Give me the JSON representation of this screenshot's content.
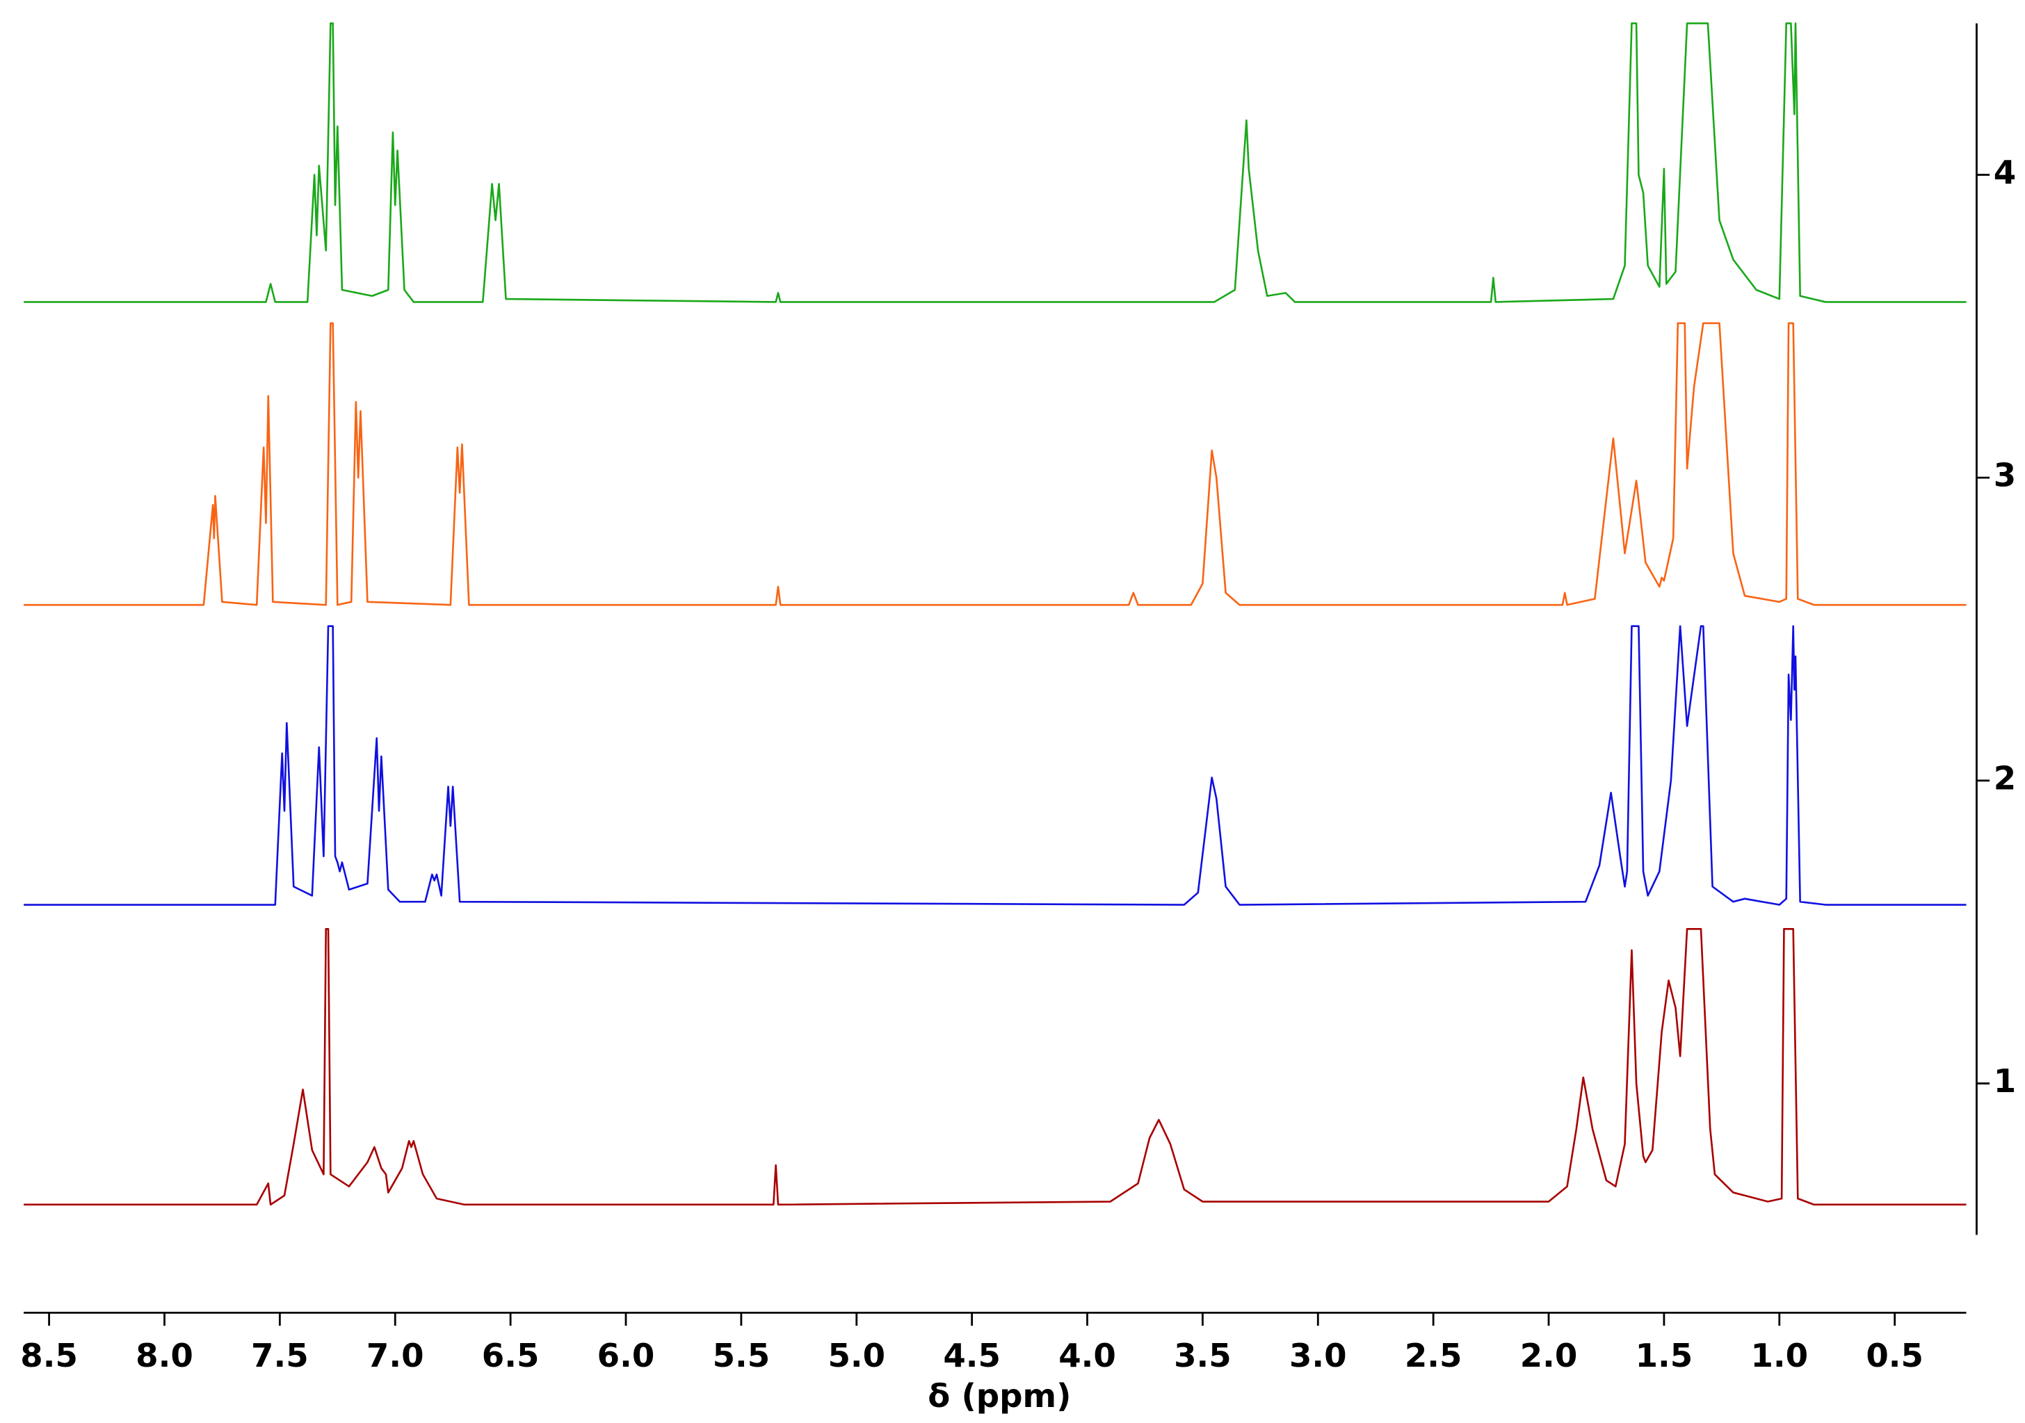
{
  "chart_data": {
    "type": "line",
    "xlabel": "δ (ppm)",
    "xlim": [
      8.61,
      0.19
    ],
    "xticks": [
      8.5,
      {
        "value": 8,
        "label": "8.0"
      },
      7.5,
      {
        "value": 7,
        "label": "7.0"
      },
      6.5,
      {
        "value": 6,
        "label": "6.0"
      },
      5.5,
      {
        "value": 5,
        "label": "5.0"
      },
      4.5,
      {
        "value": 4,
        "label": "4.0"
      },
      3.5,
      {
        "value": 3,
        "label": "3.0"
      },
      2.5,
      {
        "value": 2,
        "label": "2.0"
      },
      1.5,
      {
        "value": 1,
        "label": "1.0"
      },
      0.5
    ],
    "ylim": [
      0.5,
      4.5
    ],
    "yticks": [
      1,
      2,
      3,
      4
    ],
    "grid": false,
    "series": [
      {
        "color": "#a80000",
        "x": [
          8.61,
          7.6,
          7.55,
          7.54,
          7.48,
          7.44,
          7.4,
          7.36,
          7.31,
          7.3,
          7.29,
          7.28,
          7.2,
          7.12,
          7.09,
          7.06,
          7.04,
          7.03,
          6.97,
          6.94,
          6.93,
          6.92,
          6.88,
          6.82,
          6.7,
          5.36,
          5.35,
          5.34,
          3.9,
          3.78,
          3.73,
          3.69,
          3.64,
          3.58,
          3.5,
          2.0,
          1.92,
          1.88,
          1.85,
          1.81,
          1.75,
          1.71,
          1.67,
          1.64,
          1.62,
          1.59,
          1.58,
          1.55,
          1.51,
          1.48,
          1.45,
          1.43,
          1.4,
          1.34,
          1.3,
          1.28,
          1.2,
          1.15,
          1.05,
          0.99,
          0.98,
          0.94,
          0.92,
          0.85,
          0.19
        ],
        "values": [
          0.6,
          0.6,
          0.67,
          0.6,
          0.63,
          0.8,
          0.98,
          0.78,
          0.7,
          1.51,
          1.51,
          0.7,
          0.66,
          0.74,
          0.79,
          0.72,
          0.7,
          0.64,
          0.72,
          0.81,
          0.79,
          0.81,
          0.7,
          0.62,
          0.6,
          0.6,
          0.73,
          0.6,
          0.61,
          0.67,
          0.82,
          0.88,
          0.8,
          0.65,
          0.61,
          0.61,
          0.66,
          0.85,
          1.02,
          0.85,
          0.68,
          0.66,
          0.8,
          1.44,
          1.0,
          0.76,
          0.74,
          0.78,
          1.17,
          1.34,
          1.25,
          1.09,
          1.51,
          1.51,
          0.85,
          0.7,
          0.64,
          0.63,
          0.61,
          0.62,
          1.51,
          1.51,
          0.62,
          0.6,
          0.6
        ]
      },
      {
        "color": "#1010e0",
        "x": [
          8.61,
          7.52,
          7.49,
          7.48,
          7.47,
          7.44,
          7.36,
          7.33,
          7.31,
          7.29,
          7.27,
          7.26,
          7.25,
          7.24,
          7.23,
          7.2,
          7.12,
          7.08,
          7.07,
          7.06,
          7.03,
          6.98,
          6.87,
          6.84,
          6.83,
          6.82,
          6.8,
          6.77,
          6.76,
          6.75,
          6.72,
          3.58,
          3.52,
          3.46,
          3.44,
          3.4,
          3.34,
          1.84,
          1.78,
          1.73,
          1.69,
          1.67,
          1.66,
          1.64,
          1.61,
          1.59,
          1.57,
          1.52,
          1.47,
          1.43,
          1.4,
          1.34,
          1.33,
          1.29,
          1.2,
          1.15,
          1.0,
          0.97,
          0.96,
          0.95,
          0.94,
          0.935,
          0.93,
          0.91,
          0.8,
          0.19
        ],
        "values": [
          1.59,
          1.59,
          2.09,
          1.9,
          2.19,
          1.65,
          1.62,
          2.11,
          1.75,
          2.51,
          2.51,
          1.75,
          1.73,
          1.7,
          1.73,
          1.64,
          1.66,
          2.14,
          1.9,
          2.08,
          1.64,
          1.6,
          1.6,
          1.69,
          1.67,
          1.69,
          1.62,
          1.98,
          1.85,
          1.98,
          1.6,
          1.59,
          1.63,
          2.01,
          1.94,
          1.65,
          1.59,
          1.6,
          1.72,
          1.96,
          1.75,
          1.65,
          1.7,
          2.51,
          2.51,
          1.7,
          1.62,
          1.7,
          2.0,
          2.51,
          2.18,
          2.51,
          2.51,
          1.65,
          1.6,
          1.61,
          1.59,
          1.61,
          2.35,
          2.2,
          2.51,
          2.3,
          2.41,
          1.6,
          1.59,
          1.59
        ]
      },
      {
        "color": "#f86414",
        "x": [
          8.61,
          7.83,
          7.79,
          7.785,
          7.78,
          7.75,
          7.6,
          7.57,
          7.56,
          7.55,
          7.53,
          7.3,
          7.28,
          7.27,
          7.25,
          7.19,
          7.17,
          7.16,
          7.15,
          7.12,
          6.76,
          6.73,
          6.72,
          6.71,
          6.68,
          5.35,
          5.34,
          5.33,
          3.82,
          3.8,
          3.78,
          3.55,
          3.5,
          3.46,
          3.44,
          3.4,
          3.34,
          1.94,
          1.93,
          1.92,
          1.8,
          1.72,
          1.67,
          1.62,
          1.58,
          1.52,
          1.51,
          1.5,
          1.46,
          1.44,
          1.41,
          1.4,
          1.37,
          1.33,
          1.26,
          1.2,
          1.15,
          1.0,
          0.97,
          0.96,
          0.94,
          0.92,
          0.85,
          0.19
        ],
        "values": [
          2.58,
          2.58,
          2.91,
          2.8,
          2.94,
          2.59,
          2.58,
          3.1,
          2.85,
          3.27,
          2.59,
          2.58,
          3.51,
          3.51,
          2.58,
          2.59,
          3.25,
          3.0,
          3.22,
          2.59,
          2.58,
          3.1,
          2.95,
          3.11,
          2.58,
          2.58,
          2.64,
          2.58,
          2.58,
          2.62,
          2.58,
          2.58,
          2.65,
          3.09,
          3.0,
          2.62,
          2.58,
          2.58,
          2.62,
          2.58,
          2.6,
          3.13,
          2.75,
          2.99,
          2.72,
          2.64,
          2.67,
          2.66,
          2.8,
          3.51,
          3.51,
          3.03,
          3.3,
          3.51,
          3.51,
          2.75,
          2.61,
          2.59,
          2.6,
          3.51,
          3.51,
          2.6,
          2.58,
          2.58
        ]
      },
      {
        "color": "#1aa81a",
        "x": [
          8.61,
          7.56,
          7.54,
          7.52,
          7.38,
          7.35,
          7.34,
          7.33,
          7.3,
          7.28,
          7.27,
          7.26,
          7.25,
          7.23,
          7.1,
          7.03,
          7.01,
          7.0,
          6.99,
          6.96,
          6.92,
          6.62,
          6.58,
          6.565,
          6.55,
          6.52,
          5.35,
          5.34,
          5.33,
          3.45,
          3.36,
          3.31,
          3.3,
          3.26,
          3.22,
          3.14,
          3.1,
          2.25,
          2.24,
          2.23,
          1.72,
          1.67,
          1.64,
          1.62,
          1.61,
          1.59,
          1.57,
          1.52,
          1.5,
          1.49,
          1.45,
          1.4,
          1.31,
          1.26,
          1.2,
          1.1,
          1.0,
          0.97,
          0.95,
          0.935,
          0.93,
          0.91,
          0.8,
          0.19
        ],
        "values": [
          3.58,
          3.58,
          3.64,
          3.58,
          3.58,
          4.0,
          3.8,
          4.03,
          3.75,
          4.5,
          4.5,
          3.9,
          4.16,
          3.62,
          3.6,
          3.62,
          4.14,
          3.9,
          4.08,
          3.62,
          3.58,
          3.58,
          3.97,
          3.85,
          3.97,
          3.59,
          3.58,
          3.61,
          3.58,
          3.58,
          3.62,
          4.18,
          4.02,
          3.75,
          3.6,
          3.61,
          3.58,
          3.58,
          3.66,
          3.58,
          3.59,
          3.7,
          4.5,
          4.5,
          4.0,
          3.94,
          3.7,
          3.63,
          4.02,
          3.64,
          3.68,
          4.5,
          4.5,
          3.85,
          3.72,
          3.62,
          3.59,
          4.5,
          4.5,
          4.2,
          4.5,
          3.6,
          3.58,
          3.58
        ]
      }
    ]
  }
}
